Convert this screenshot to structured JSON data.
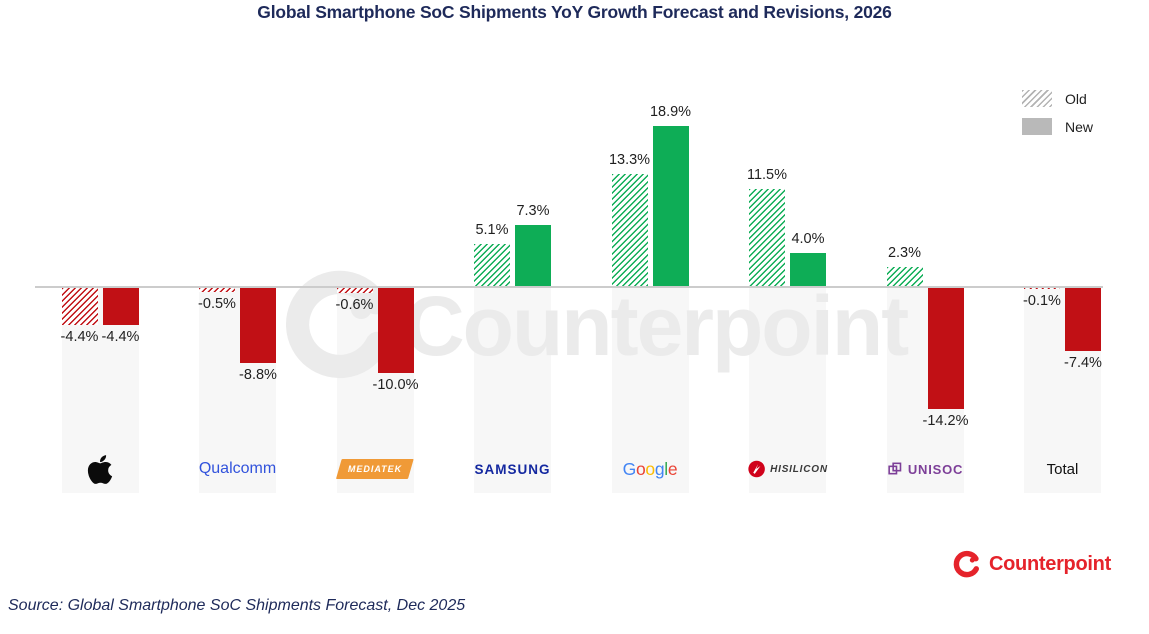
{
  "title": "Global Smartphone SoC Shipments YoY Growth Forecast and Revisions, 2026",
  "source": "Source: Global Smartphone SoC Shipments Forecast, Dec 2025",
  "watermark": "Counterpoint",
  "brand": {
    "name": "Counterpoint",
    "color": "#e5232b"
  },
  "legend": [
    {
      "label": "Old",
      "style": "hatched"
    },
    {
      "label": "New",
      "style": "solid"
    }
  ],
  "colors": {
    "positive": "#0ead56",
    "negative": "#c11015",
    "band": "#f7f7f7",
    "zero_line": "#cccccc",
    "title": "#1e2a5a",
    "value_label": "#1f1f1f",
    "legend_swatch": "#b9b9b9",
    "watermark": "#ebebeb",
    "brand_red": "#e5232b"
  },
  "chart_data": {
    "type": "bar",
    "title": "Global Smartphone SoC Shipments YoY Growth Forecast and Revisions, 2026",
    "categories": [
      "Apple",
      "Qualcomm",
      "MediaTek",
      "Samsung",
      "Google",
      "HiSilicon",
      "UNISOC",
      "Total"
    ],
    "series": [
      {
        "name": "Old",
        "style": "hatched",
        "values": [
          -4.4,
          -0.5,
          -0.6,
          5.1,
          13.3,
          11.5,
          2.3,
          -0.1
        ],
        "labels": [
          "-4.4%",
          "-0.5%",
          "-0.6%",
          "5.1%",
          "13.3%",
          "11.5%",
          "2.3%",
          "-0.1%"
        ]
      },
      {
        "name": "New",
        "style": "solid",
        "values": [
          -4.4,
          -8.8,
          -10.0,
          7.3,
          18.9,
          4.0,
          -14.2,
          -7.4
        ],
        "labels": [
          "-4.4%",
          "-8.8%",
          "-10.0%",
          "7.3%",
          "18.9%",
          "4.0%",
          "-14.2%",
          "-7.4%"
        ]
      }
    ],
    "unit": "%",
    "ylim": [
      -16,
      20
    ],
    "grid": false,
    "legend_position": "top-right",
    "color_rule": "green if positive, red if negative"
  },
  "logos": [
    {
      "id": "apple",
      "type": "icon",
      "text": ""
    },
    {
      "id": "qualcomm",
      "type": "text",
      "text": "Qualcomm"
    },
    {
      "id": "mediatek",
      "type": "badge",
      "text": "MEDIATEK"
    },
    {
      "id": "samsung",
      "type": "text",
      "text": "SAMSUNG"
    },
    {
      "id": "google",
      "type": "letters",
      "text": "Google",
      "letter_colors": [
        "#4285F4",
        "#EA4335",
        "#FBBC05",
        "#4285F4",
        "#34A853",
        "#EA4335"
      ]
    },
    {
      "id": "hisilicon",
      "type": "icon-text",
      "text": "HISILICON"
    },
    {
      "id": "unisoc",
      "type": "icon-text",
      "text": "UNISOC"
    },
    {
      "id": "total",
      "type": "text",
      "text": "Total"
    }
  ]
}
